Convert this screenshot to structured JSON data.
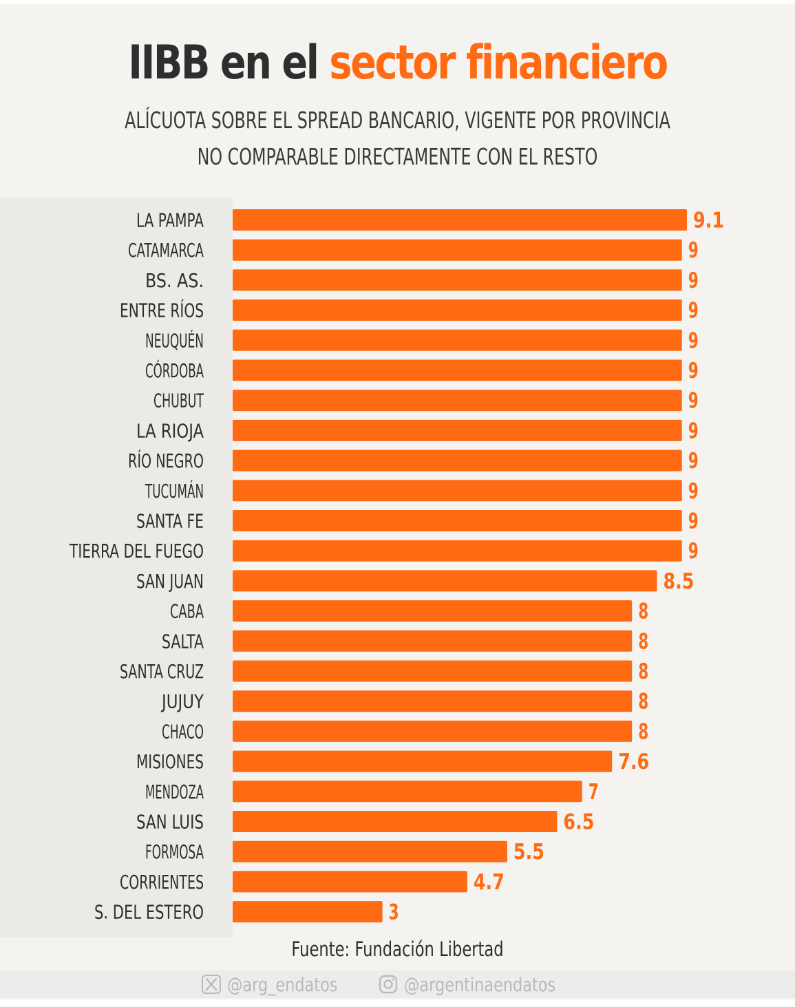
{
  "header": {
    "title_main": "IIBB en el",
    "title_accent": "sector financiero",
    "subtitle_line1": "ALÍCUOTA SOBRE EL SPREAD BANCARIO, VIGENTE POR PROVINCIA",
    "subtitle_line2": "NO COMPARABLE DIRECTAMENTE CON EL RESTO"
  },
  "colors": {
    "accent": "#ff6a13",
    "text": "#2e2e2e",
    "background": "#f4f3ef"
  },
  "chart_data": {
    "type": "bar",
    "orientation": "horizontal",
    "categories": [
      "LA PAMPA",
      "CATAMARCA",
      "BS. AS.",
      "ENTRE RÍOS",
      "NEUQUÉN",
      "CÓRDOBA",
      "CHUBUT",
      "LA RIOJA",
      "RÍO NEGRO",
      "TUCUMÁN",
      "SANTA FE",
      "TIERRA DEL FUEGO",
      "SAN JUAN",
      "CABA",
      "SALTA",
      "SANTA CRUZ",
      "JUJUY",
      "CHACO",
      "MISIONES",
      "MENDOZA",
      "SAN LUIS",
      "FORMOSA",
      "CORRIENTES",
      "S. DEL ESTERO"
    ],
    "values": [
      9.1,
      9,
      9,
      9,
      9,
      9,
      9,
      9,
      9,
      9,
      9,
      9,
      8.5,
      8,
      8,
      8,
      8,
      8,
      7.6,
      7,
      6.5,
      5.5,
      4.7,
      3
    ],
    "value_labels": [
      "9.1",
      "9",
      "9",
      "9",
      "9",
      "9",
      "9",
      "9",
      "9",
      "9",
      "9",
      "9",
      "8.5",
      "8",
      "8",
      "8",
      "8",
      "8",
      "7.6",
      "7",
      "6.5",
      "5.5",
      "4.7",
      "3"
    ],
    "xlim": [
      0,
      9.1
    ],
    "grid": false,
    "legend": "none",
    "bar_color": "#ff6a13"
  },
  "footer": {
    "source": "Fuente: Fundación Libertad",
    "social_x_icon": "x-logo-icon",
    "social_x_handle": "@arg_endatos",
    "social_ig_icon": "instagram-icon",
    "social_ig_handle": "@argentinaendatos"
  }
}
